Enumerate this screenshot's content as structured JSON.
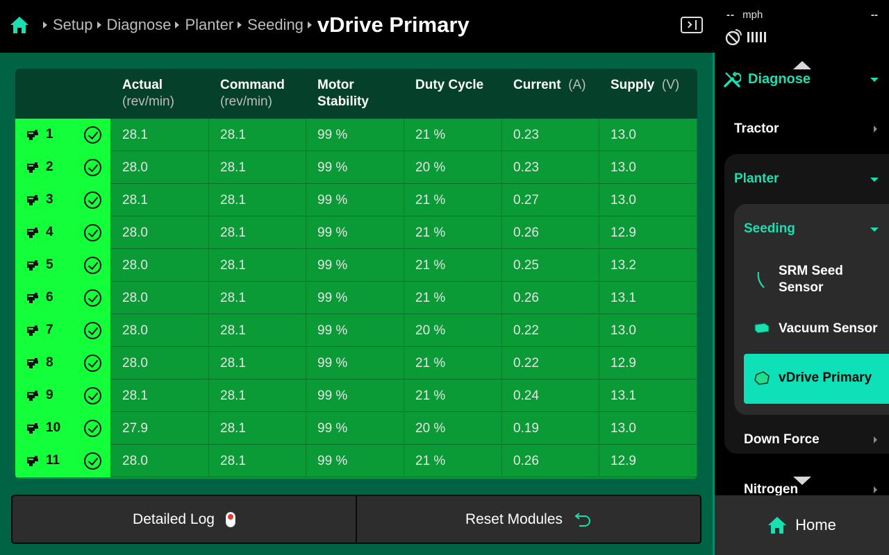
{
  "breadcrumb": {
    "items": [
      "Setup",
      "Diagnose",
      "Planter",
      "Seeding"
    ],
    "current": "vDrive Primary"
  },
  "status": {
    "speed_value": "-- ",
    "speed_unit": "mph",
    "right_value": "--"
  },
  "table": {
    "columns": [
      {
        "header": "Actual",
        "unit": "(rev/min)"
      },
      {
        "header": "Command",
        "unit": "(rev/min)"
      },
      {
        "header": "Motor",
        "unit": "Stability"
      },
      {
        "header": "Duty Cycle",
        "unit": ""
      },
      {
        "header": "Current",
        "unit": "(A)"
      },
      {
        "header": "Supply",
        "unit": "(V)"
      }
    ],
    "rows": [
      {
        "id": "1",
        "actual": "28.1",
        "command": "28.1",
        "stability": "99 %",
        "duty": "21 %",
        "current": "0.23",
        "supply": "13.0"
      },
      {
        "id": "2",
        "actual": "28.0",
        "command": "28.1",
        "stability": "99 %",
        "duty": "20 %",
        "current": "0.23",
        "supply": "13.0"
      },
      {
        "id": "3",
        "actual": "28.1",
        "command": "28.1",
        "stability": "99 %",
        "duty": "21 %",
        "current": "0.27",
        "supply": "13.0"
      },
      {
        "id": "4",
        "actual": "28.0",
        "command": "28.1",
        "stability": "99 %",
        "duty": "21 %",
        "current": "0.26",
        "supply": "12.9"
      },
      {
        "id": "5",
        "actual": "28.0",
        "command": "28.1",
        "stability": "99 %",
        "duty": "21 %",
        "current": "0.25",
        "supply": "13.2"
      },
      {
        "id": "6",
        "actual": "28.0",
        "command": "28.1",
        "stability": "99 %",
        "duty": "21 %",
        "current": "0.26",
        "supply": "13.1"
      },
      {
        "id": "7",
        "actual": "28.0",
        "command": "28.1",
        "stability": "99 %",
        "duty": "20 %",
        "current": "0.22",
        "supply": "13.0"
      },
      {
        "id": "8",
        "actual": "28.0",
        "command": "28.1",
        "stability": "99 %",
        "duty": "21 %",
        "current": "0.22",
        "supply": "12.9"
      },
      {
        "id": "9",
        "actual": "28.1",
        "command": "28.1",
        "stability": "99 %",
        "duty": "21 %",
        "current": "0.24",
        "supply": "13.1"
      },
      {
        "id": "10",
        "actual": "27.9",
        "command": "28.1",
        "stability": "99 %",
        "duty": "20 %",
        "current": "0.19",
        "supply": "13.0"
      },
      {
        "id": "11",
        "actual": "28.0",
        "command": "28.1",
        "stability": "99 %",
        "duty": "21 %",
        "current": "0.26",
        "supply": "12.9"
      }
    ]
  },
  "footer": {
    "detailed_log_label": "Detailed Log",
    "reset_modules_label": "Reset Modules"
  },
  "sidebar": {
    "diagnose_label": "Diagnose",
    "tractor_label": "Tractor",
    "planter_label": "Planter",
    "seeding_label": "Seeding",
    "srm_label_1": "SRM Seed",
    "srm_label_2": "Sensor",
    "vacuum_label": "Vacuum Sensor",
    "vdrive_label": "vDrive Primary",
    "downforce_label": "Down Force",
    "nitrogen_label": "Nitrogen",
    "home_label": "Home"
  },
  "colors": {
    "accent": "#19e0b0",
    "row_ok": "#12ff3a",
    "table_bg": "#0a9a36",
    "main_bg": "#006444"
  }
}
